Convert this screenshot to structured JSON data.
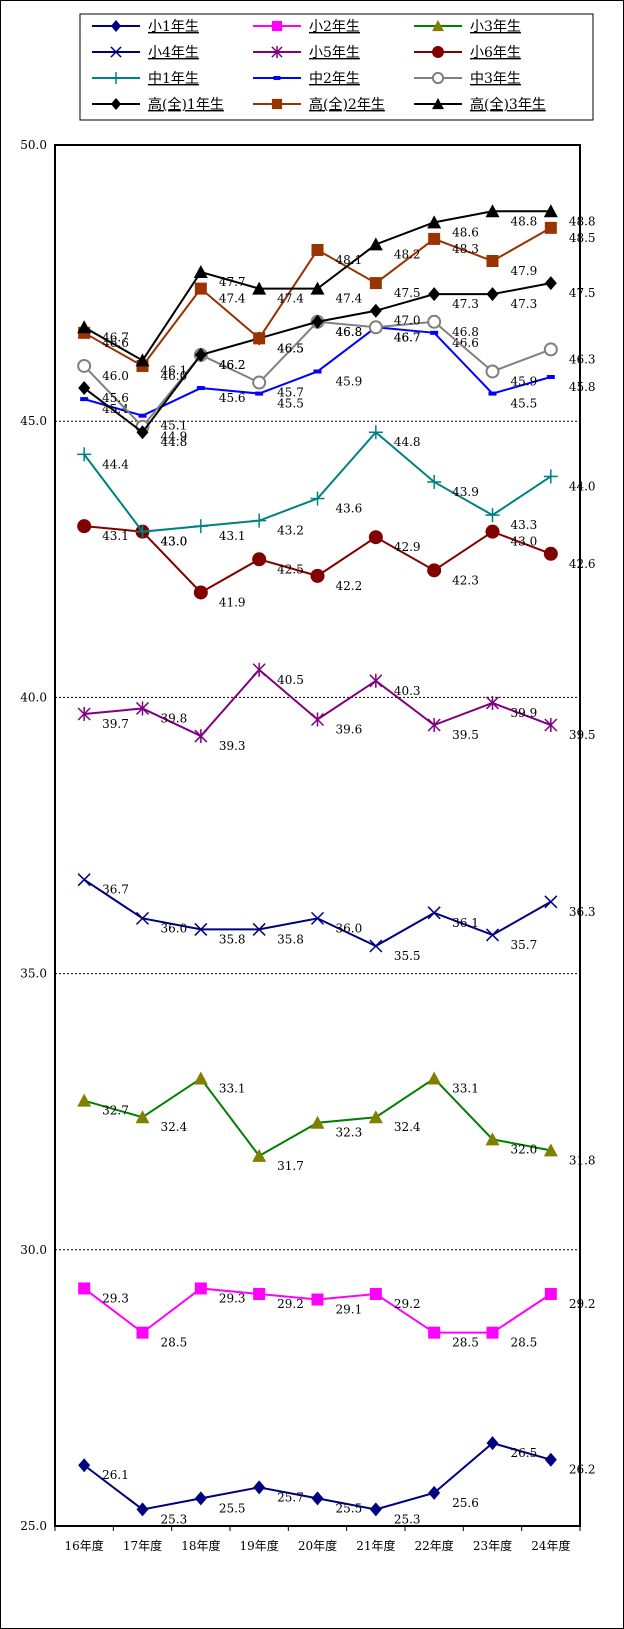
{
  "chart_data": {
    "type": "line",
    "title": "",
    "xlabel": "",
    "ylabel": "",
    "ylim": [
      25.0,
      50.0
    ],
    "y_ticks": [
      "25.0",
      "30.0",
      "35.0",
      "40.0",
      "45.0",
      "50.0"
    ],
    "grid": "dotted horizontal at 30.0, 35.0, 40.0, 45.0",
    "legend_position": "top",
    "categories": [
      "16年度",
      "17年度",
      "18年度",
      "19年度",
      "20年度",
      "21年度",
      "22年度",
      "23年度",
      "24年度"
    ],
    "series": [
      {
        "name": "小1年生",
        "color": "#000080",
        "marker": "diamond",
        "values": [
          26.1,
          25.3,
          25.5,
          25.7,
          25.5,
          25.3,
          25.6,
          26.5,
          26.2
        ]
      },
      {
        "name": "小2年生",
        "color": "#ff00ff",
        "marker": "square",
        "values": [
          29.3,
          28.5,
          29.3,
          29.2,
          29.1,
          29.2,
          28.5,
          28.5,
          29.2
        ]
      },
      {
        "name": "小3年生",
        "color": "#008000",
        "marker_color": "#808000",
        "marker": "triangle",
        "values": [
          32.7,
          32.4,
          33.1,
          31.7,
          32.3,
          32.4,
          33.1,
          32.0,
          31.8
        ]
      },
      {
        "name": "小4年生",
        "color": "#000080",
        "marker": "x",
        "values": [
          36.7,
          36.0,
          35.8,
          35.8,
          36.0,
          35.5,
          36.1,
          35.7,
          36.3
        ]
      },
      {
        "name": "小5年生",
        "color": "#800080",
        "marker": "star",
        "values": [
          39.7,
          39.8,
          39.3,
          40.5,
          39.6,
          40.3,
          39.5,
          39.9,
          39.5
        ]
      },
      {
        "name": "小6年生",
        "color": "#800000",
        "marker": "circle",
        "values": [
          43.1,
          43.0,
          41.9,
          42.5,
          42.2,
          42.9,
          42.3,
          43.0,
          42.6
        ]
      },
      {
        "name": "中1年生",
        "color": "#008080",
        "marker": "plus",
        "values": [
          44.4,
          43.0,
          43.1,
          43.2,
          43.6,
          44.8,
          43.9,
          43.3,
          44.0
        ]
      },
      {
        "name": "中2年生",
        "color": "#0000ff",
        "marker": "dash",
        "values": [
          45.4,
          45.1,
          45.6,
          45.5,
          45.9,
          46.7,
          46.6,
          45.5,
          45.8
        ]
      },
      {
        "name": "中3年生",
        "color": "#808080",
        "marker": "open-circle",
        "values": [
          46.0,
          44.9,
          46.2,
          45.7,
          46.8,
          46.7,
          46.8,
          45.9,
          46.3
        ]
      },
      {
        "name": "高(全)1年生",
        "color": "#000000",
        "marker": "diamond",
        "values": [
          45.6,
          44.8,
          46.2,
          46.5,
          46.8,
          47.0,
          47.3,
          47.3,
          47.5
        ]
      },
      {
        "name": "高(全)2年生",
        "color": "#993300",
        "marker": "square",
        "values": [
          46.6,
          46.0,
          47.4,
          46.5,
          48.1,
          47.5,
          48.3,
          47.9,
          48.5
        ]
      },
      {
        "name": "高(全)3年生",
        "color": "#000000",
        "marker": "triangle",
        "values": [
          46.7,
          46.1,
          47.7,
          47.4,
          47.4,
          48.2,
          48.6,
          48.8,
          48.8
        ]
      }
    ]
  }
}
